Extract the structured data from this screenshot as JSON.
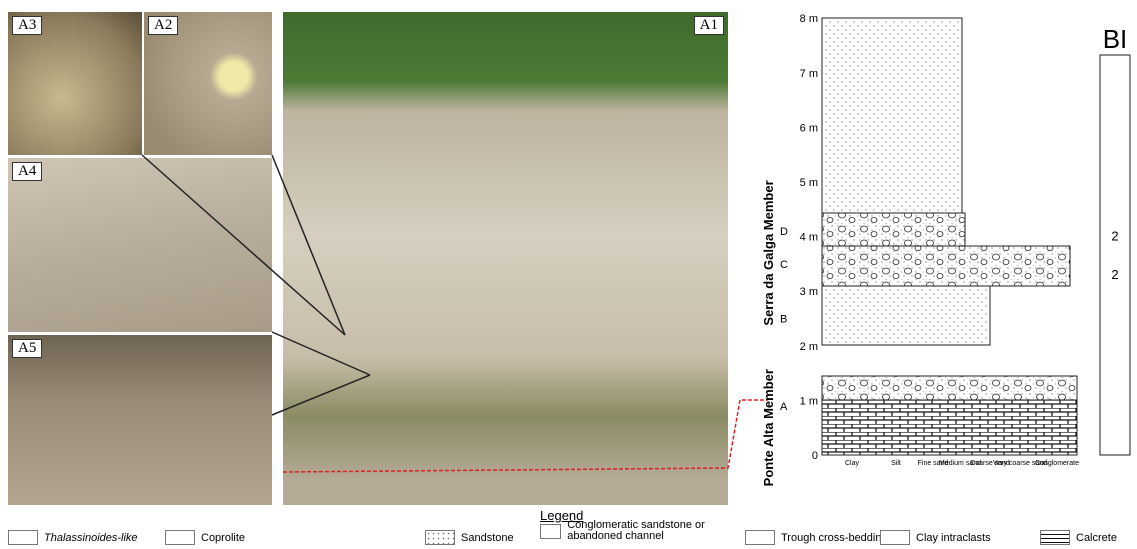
{
  "panels": {
    "a1": "A1",
    "a2": "A2",
    "a3": "A3",
    "a4": "A4",
    "a5": "A5"
  },
  "column": {
    "heights": [
      "0",
      "1 m",
      "2 m",
      "3 m",
      "4 m",
      "5 m",
      "6 m",
      "7 m",
      "8 m"
    ],
    "beds": [
      "A",
      "B",
      "C",
      "D"
    ],
    "members": [
      "Serra da Galga Member",
      "Ponte Alta Member"
    ],
    "grain_sizes": [
      "Clay",
      "Silt",
      "Fine sand",
      "Medium sand",
      "Coarse sand",
      "Very coarse sand",
      "Conglomerate"
    ],
    "bi_title": "BI",
    "bi_values": [
      "2",
      "2"
    ]
  },
  "legend": {
    "title": "Legend",
    "items": [
      "Thalassinoides-like",
      "Coprolite",
      "Sandstone",
      "Conglomeratic sandstone or abandoned channel",
      "Trough cross-bedding",
      "Clay intraclasts",
      "Calcrete"
    ]
  }
}
